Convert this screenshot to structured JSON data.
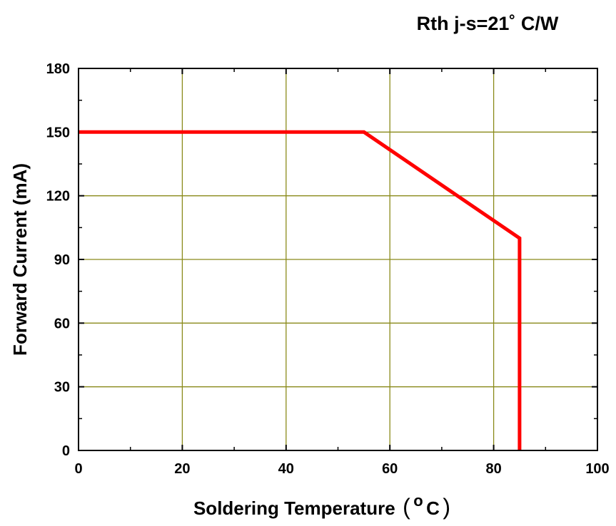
{
  "chart_data": {
    "type": "line",
    "title": "Rth j-s=21˚ C/W",
    "xlabel": "Soldering Temperature",
    "xlabel_unit_open": "(",
    "xlabel_unit_sup": "o",
    "xlabel_unit_main": "C",
    "xlabel_unit_close": ")",
    "ylabel": "Forward Current (mA)",
    "xlim": [
      0,
      100
    ],
    "ylim": [
      0,
      180
    ],
    "xticks": [
      0,
      20,
      40,
      60,
      80,
      100
    ],
    "yticks": [
      0,
      30,
      60,
      90,
      120,
      150,
      180
    ],
    "grid": true,
    "grid_color": "#8a8a1a",
    "series": [
      {
        "color": "#ff0000",
        "points": [
          [
            0,
            150
          ],
          [
            55,
            150
          ],
          [
            85,
            100
          ],
          [
            85,
            0
          ]
        ]
      }
    ]
  }
}
